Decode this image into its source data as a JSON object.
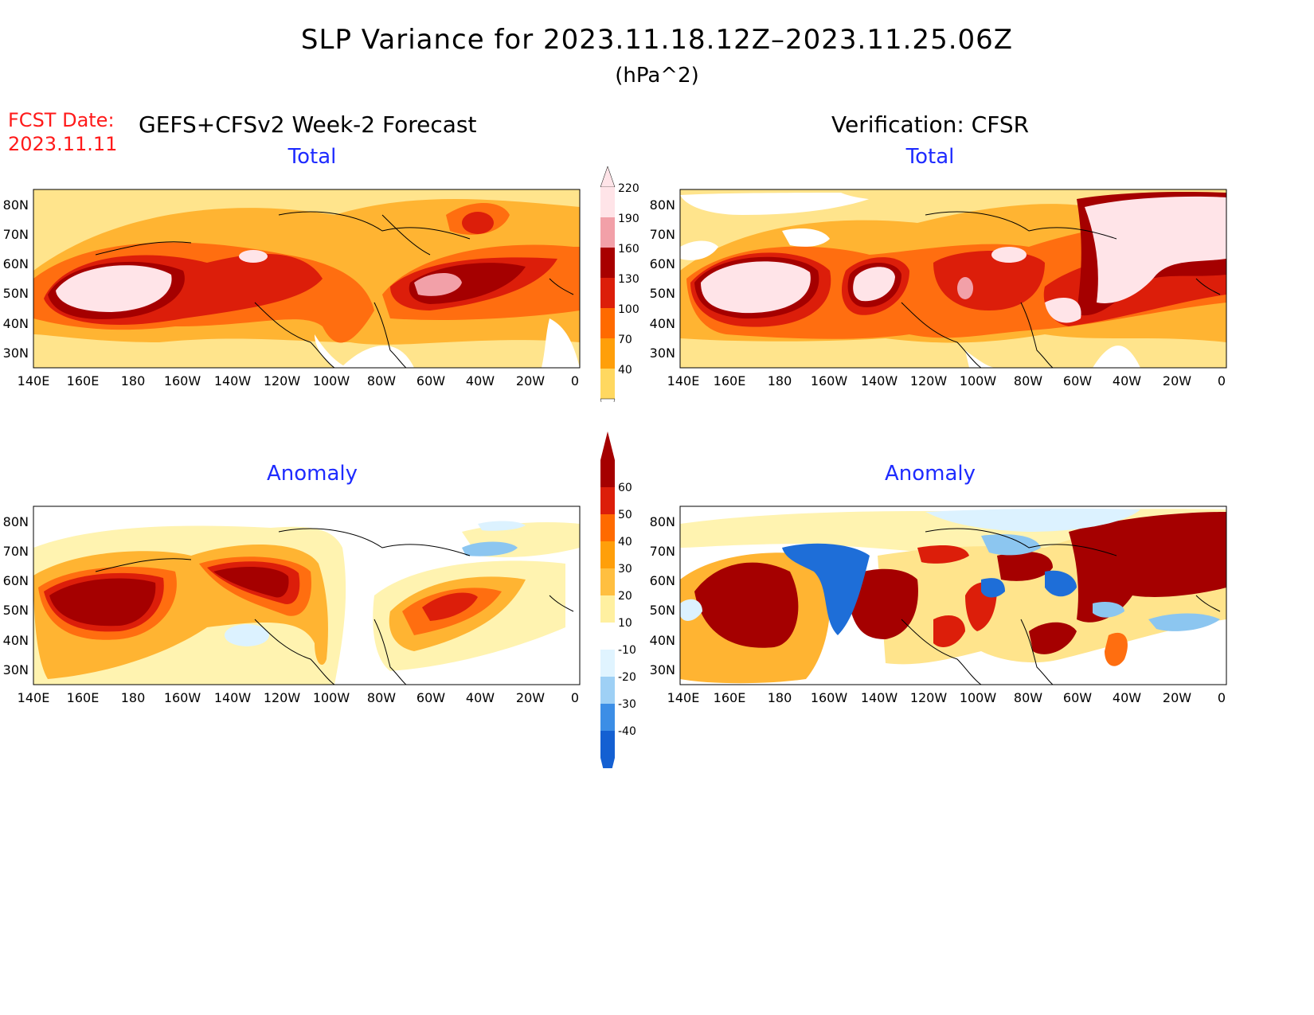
{
  "title": "SLP Variance for 2023.11.18.12Z–2023.11.25.06Z",
  "units": "(hPa^2)",
  "forecast": {
    "date_label": "FCST Date:",
    "date_value": "2023.11.11",
    "heading": "GEFS+CFSv2 Week-2 Forecast"
  },
  "verification": {
    "heading": "Verification: CFSR"
  },
  "panels": [
    {
      "id": "fcst-total",
      "title": "Total"
    },
    {
      "id": "verif-total",
      "title": "Total"
    },
    {
      "id": "fcst-anomaly",
      "title": "Anomaly"
    },
    {
      "id": "verif-anomaly",
      "title": "Anomaly"
    }
  ],
  "map_axes": {
    "lat_labels": [
      "80N",
      "70N",
      "60N",
      "50N",
      "40N",
      "30N"
    ],
    "lon_labels": [
      "140E",
      "160E",
      "180",
      "160W",
      "140W",
      "120W",
      "100W",
      "80W",
      "60W",
      "40W",
      "20W",
      "0"
    ]
  },
  "colorbars": {
    "total": {
      "ticks": [
        "220",
        "190",
        "160",
        "130",
        "100",
        "70",
        "40"
      ],
      "colors": [
        "#ffe4e8",
        "#f2a0a8",
        "#a80000",
        "#dc1e0a",
        "#ff6a00",
        "#ff9f0a",
        "#ffd860"
      ]
    },
    "anomaly": {
      "ticks": [
        "60",
        "50",
        "40",
        "30",
        "20",
        "10",
        "-10",
        "-20",
        "-30",
        "-40"
      ],
      "colors": [
        "#a50000",
        "#dc1e0a",
        "#ff6a00",
        "#ff9f0a",
        "#ffbf40",
        "#fff0a0",
        "#ffffff",
        "#e0f4ff",
        "#9ed0f5",
        "#3c8ee6",
        "#1460d2"
      ]
    }
  },
  "palette": {
    "ow_yellow": "#ffe48c",
    "ow_orange": "#ffb432",
    "ow_darkorange": "#ff6e10",
    "ow_red": "#dc1e0a",
    "ow_darkred": "#a50000",
    "ow_pink": "#f2a0a8",
    "ow_lightpink": "#ffe4e8",
    "ow_lightblue": "#dcf2ff",
    "ow_blue": "#8cc6f0",
    "ow_darkblue": "#1e6ed8",
    "ow_paleyellow": "#fff3b0"
  }
}
